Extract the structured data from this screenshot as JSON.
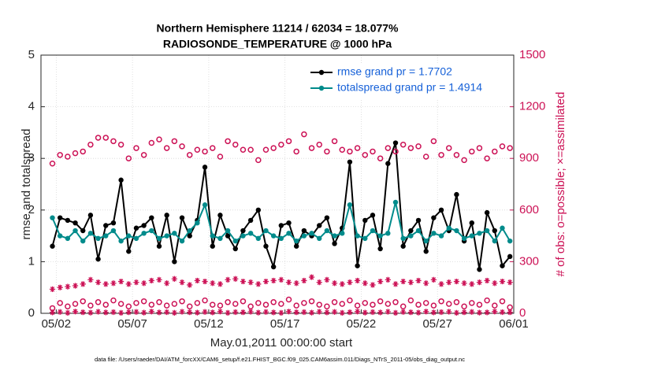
{
  "chart_data": {
    "type": "line",
    "title": "Northern Hemisphere 11214 / 62034 = 18.077%",
    "subtitle": "RADIOSONDE_TEMPERATURE @ 1000 hPa",
    "x_label": "May.01,2011 00:00:00 start",
    "y_label": "rmse and totalspread",
    "y2_label": "# of obs: o=possible; ×=assimilated",
    "footnote": "data file: /Users/raeder/DAI/ATM_forcXX/CAM6_setup/f.e21.FHIST_BGC.f09_025.CAM6assim.011/Diags_NTrS_2011-05/obs_diag_output.nc",
    "xlim": [
      0,
      31
    ],
    "xticks": [
      {
        "value": 1,
        "label": "05/02"
      },
      {
        "value": 6,
        "label": "05/07"
      },
      {
        "value": 11,
        "label": "05/12"
      },
      {
        "value": 16,
        "label": "05/17"
      },
      {
        "value": 21,
        "label": "05/22"
      },
      {
        "value": 26,
        "label": "05/27"
      },
      {
        "value": 31,
        "label": "06/01"
      }
    ],
    "ylim": [
      0,
      5
    ],
    "yticks": [
      0,
      1,
      2,
      3,
      4,
      5
    ],
    "y2lim": [
      0,
      1500
    ],
    "y2ticks": [
      0,
      300,
      600,
      900,
      1200,
      1500
    ],
    "grid": true,
    "legend": "upper right",
    "x": [
      0.75,
      1.25,
      1.75,
      2.25,
      2.75,
      3.25,
      3.75,
      4.25,
      4.75,
      5.25,
      5.75,
      6.25,
      6.75,
      7.25,
      7.75,
      8.25,
      8.75,
      9.25,
      9.75,
      10.25,
      10.75,
      11.25,
      11.75,
      12.25,
      12.75,
      13.25,
      13.75,
      14.25,
      14.75,
      15.25,
      15.75,
      16.25,
      16.75,
      17.25,
      17.75,
      18.25,
      18.75,
      19.25,
      19.75,
      20.25,
      20.75,
      21.25,
      21.75,
      22.25,
      22.75,
      23.25,
      23.75,
      24.25,
      24.75,
      25.25,
      25.75,
      26.25,
      26.75,
      27.25,
      27.75,
      28.25,
      28.75,
      29.25,
      29.75,
      30.25,
      30.75
    ],
    "series": [
      {
        "name": "rmse grand pr = 1.7702",
        "type": "line",
        "marker": "dot",
        "color": "#000000",
        "values": [
          1.3,
          1.85,
          1.8,
          1.75,
          1.6,
          1.9,
          1.05,
          1.7,
          1.75,
          2.58,
          1.2,
          1.65,
          1.7,
          1.85,
          1.3,
          1.9,
          1.0,
          1.85,
          1.5,
          1.8,
          2.83,
          1.3,
          1.9,
          1.5,
          1.25,
          1.6,
          1.8,
          2.0,
          1.3,
          0.9,
          1.7,
          1.75,
          1.3,
          1.6,
          1.5,
          1.7,
          1.85,
          1.35,
          1.65,
          2.93,
          0.92,
          1.8,
          1.9,
          1.25,
          2.9,
          3.3,
          1.3,
          1.6,
          1.8,
          1.2,
          1.85,
          2.0,
          1.6,
          2.3,
          1.4,
          1.75,
          0.85,
          1.95,
          1.6,
          0.92,
          1.1
        ]
      },
      {
        "name": "totalspread grand pr = 1.4914",
        "type": "line",
        "marker": "dot",
        "color": "#008b8b",
        "values": [
          1.85,
          1.5,
          1.45,
          1.6,
          1.4,
          1.55,
          1.45,
          1.5,
          1.6,
          1.4,
          1.5,
          1.45,
          1.55,
          1.6,
          1.45,
          1.5,
          1.55,
          1.4,
          1.6,
          1.75,
          2.1,
          1.5,
          1.45,
          1.6,
          1.4,
          1.5,
          1.55,
          1.45,
          1.6,
          1.5,
          1.45,
          1.55,
          1.4,
          1.5,
          1.55,
          1.45,
          1.6,
          1.5,
          1.55,
          2.1,
          1.5,
          1.45,
          1.6,
          1.5,
          1.55,
          2.15,
          1.45,
          1.5,
          1.6,
          1.4,
          1.55,
          1.5,
          1.65,
          1.6,
          1.45,
          1.5,
          1.55,
          1.6,
          1.4,
          1.65,
          1.4
        ]
      },
      {
        "type": "scatter",
        "marker": "o",
        "color": "#cc1155",
        "axis": "y2",
        "values": [
          870,
          920,
          910,
          930,
          940,
          980,
          1020,
          1020,
          1000,
          980,
          900,
          960,
          920,
          990,
          1010,
          960,
          1000,
          970,
          920,
          950,
          940,
          960,
          910,
          1000,
          980,
          950,
          950,
          890,
          950,
          960,
          980,
          1000,
          940,
          1040,
          960,
          980,
          940,
          1000,
          950,
          940,
          960,
          920,
          940,
          900,
          960,
          940,
          980,
          960,
          970,
          910,
          1000,
          920,
          960,
          920,
          890,
          940,
          960,
          900,
          940,
          970,
          960
        ]
      },
      {
        "type": "scatter",
        "marker": "*",
        "color": "#cc1155",
        "axis": "y2",
        "values": [
          140,
          150,
          155,
          160,
          170,
          195,
          180,
          170,
          175,
          185,
          170,
          180,
          175,
          190,
          195,
          175,
          200,
          180,
          165,
          190,
          185,
          175,
          170,
          195,
          200,
          185,
          180,
          170,
          185,
          190,
          195,
          180,
          175,
          190,
          210,
          180,
          195,
          175,
          170,
          180,
          190,
          175,
          165,
          185,
          195,
          170,
          185,
          180,
          190,
          175,
          195,
          170,
          180,
          185,
          175,
          170,
          180,
          190,
          175,
          185,
          180
        ]
      },
      {
        "type": "scatter",
        "marker": "o",
        "color": "#cc1155",
        "axis": "y2",
        "values": [
          30,
          60,
          40,
          55,
          70,
          45,
          65,
          50,
          75,
          55,
          40,
          60,
          70,
          50,
          65,
          45,
          55,
          70,
          40,
          60,
          75,
          50,
          45,
          65,
          55,
          70,
          40,
          60,
          50,
          65,
          55,
          80,
          45,
          60,
          70,
          50,
          40,
          65,
          55,
          75,
          45,
          60,
          50,
          70,
          55,
          65,
          40,
          75,
          50,
          60,
          45,
          70,
          55,
          65,
          40,
          60,
          50,
          75,
          45,
          70,
          35
        ]
      },
      {
        "type": "scatter",
        "marker": "*",
        "color": "#cc1155",
        "axis": "y2",
        "values": [
          5,
          8,
          3,
          10,
          6,
          4,
          9,
          5,
          7,
          3,
          6,
          8,
          4,
          10,
          5,
          7,
          3,
          9,
          6,
          4,
          8,
          5,
          10,
          3,
          7,
          6,
          9,
          4,
          8,
          5,
          3,
          10,
          6,
          7,
          4,
          9,
          5,
          8,
          3,
          6,
          10,
          4,
          7,
          5,
          9,
          3,
          8,
          6,
          4,
          10,
          5,
          7,
          9,
          3,
          6,
          8,
          4,
          5,
          10,
          7,
          6
        ]
      }
    ]
  }
}
